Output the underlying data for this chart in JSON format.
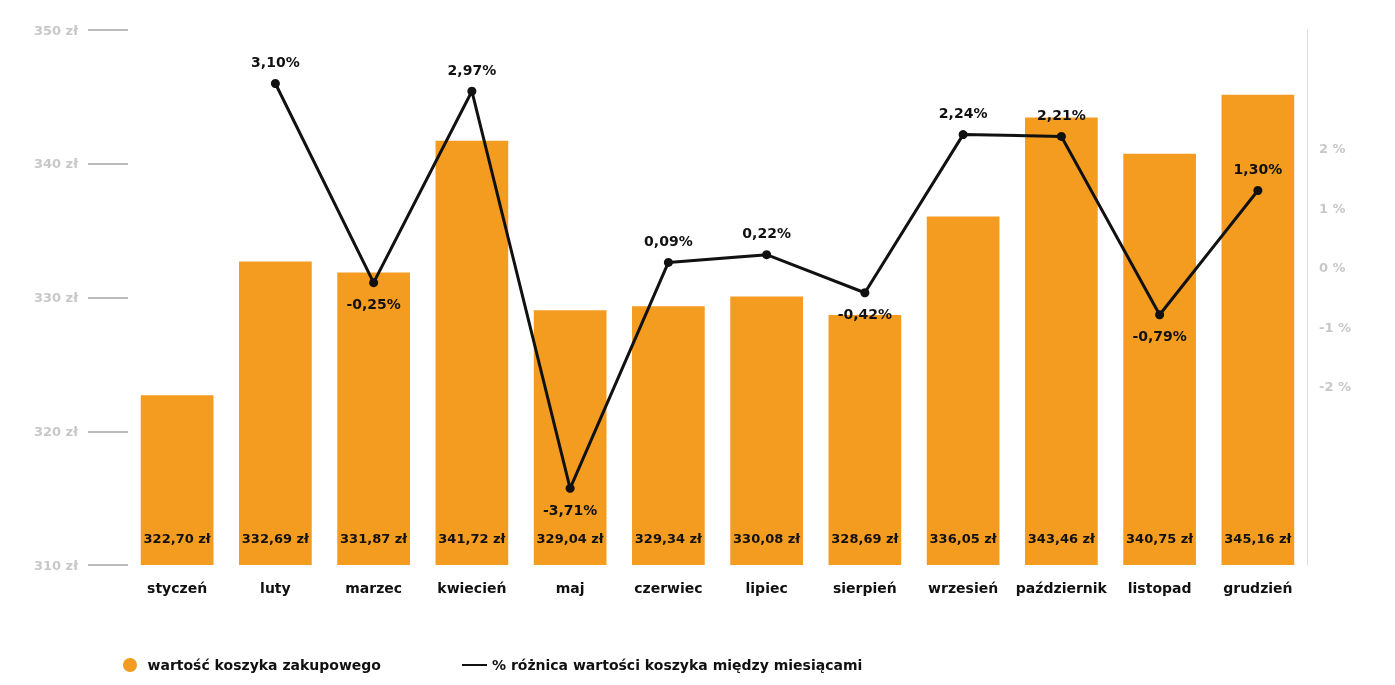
{
  "chart_data": {
    "type": "bar",
    "categories": [
      "styczeń",
      "luty",
      "marzec",
      "kwiecień",
      "maj",
      "czerwiec",
      "lipiec",
      "sierpień",
      "wrzesień",
      "październik",
      "listopad",
      "grudzień"
    ],
    "series": [
      {
        "name": "wartość koszyka zakupowego",
        "color": "#f49c20",
        "values": [
          322.7,
          332.69,
          331.87,
          341.72,
          329.04,
          329.34,
          330.08,
          328.69,
          336.05,
          343.46,
          340.75,
          345.16
        ],
        "value_labels": [
          "322,70 zł",
          "332,69 zł",
          "331,87 zł",
          "341,72 zł",
          "329,04 zł",
          "329,34 zł",
          "330,08 zł",
          "328,69 zł",
          "336,05 zł",
          "343,46 zł",
          "340,75 zł",
          "345,16 zł"
        ]
      },
      {
        "name": "% różnica wartości koszyka między miesiącami",
        "type": "line",
        "axis": "y2",
        "color": "#111111",
        "values": [
          null,
          3.1,
          -0.25,
          2.97,
          -3.71,
          0.09,
          0.22,
          -0.42,
          2.24,
          2.21,
          -0.79,
          1.3
        ],
        "value_labels": [
          null,
          "3,10%",
          "-0,25%",
          "2,97%",
          "-3,71%",
          "0,09%",
          "0,22%",
          "-0,42%",
          "2,24%",
          "2,21%",
          "-0,79%",
          "1,30%"
        ]
      }
    ],
    "ylim": [
      310,
      350
    ],
    "yticks": [
      {
        "value": 310,
        "label": "310 zł"
      },
      {
        "value": 320,
        "label": "320 zł"
      },
      {
        "value": 330,
        "label": "330 zł"
      },
      {
        "value": 340,
        "label": "340 zł"
      },
      {
        "value": 350,
        "label": "350 zł"
      }
    ],
    "y2lim": [
      -5,
      4
    ],
    "y2ticks": [
      {
        "value": -2,
        "label": "-2 %"
      },
      {
        "value": -1,
        "label": "-1 %"
      },
      {
        "value": 0,
        "label": "0 %"
      },
      {
        "value": 1,
        "label": "1 %"
      },
      {
        "value": 2,
        "label": "2 %"
      }
    ],
    "grid": false,
    "legend": "bottom",
    "marker": "circle",
    "line_style": "solid"
  }
}
